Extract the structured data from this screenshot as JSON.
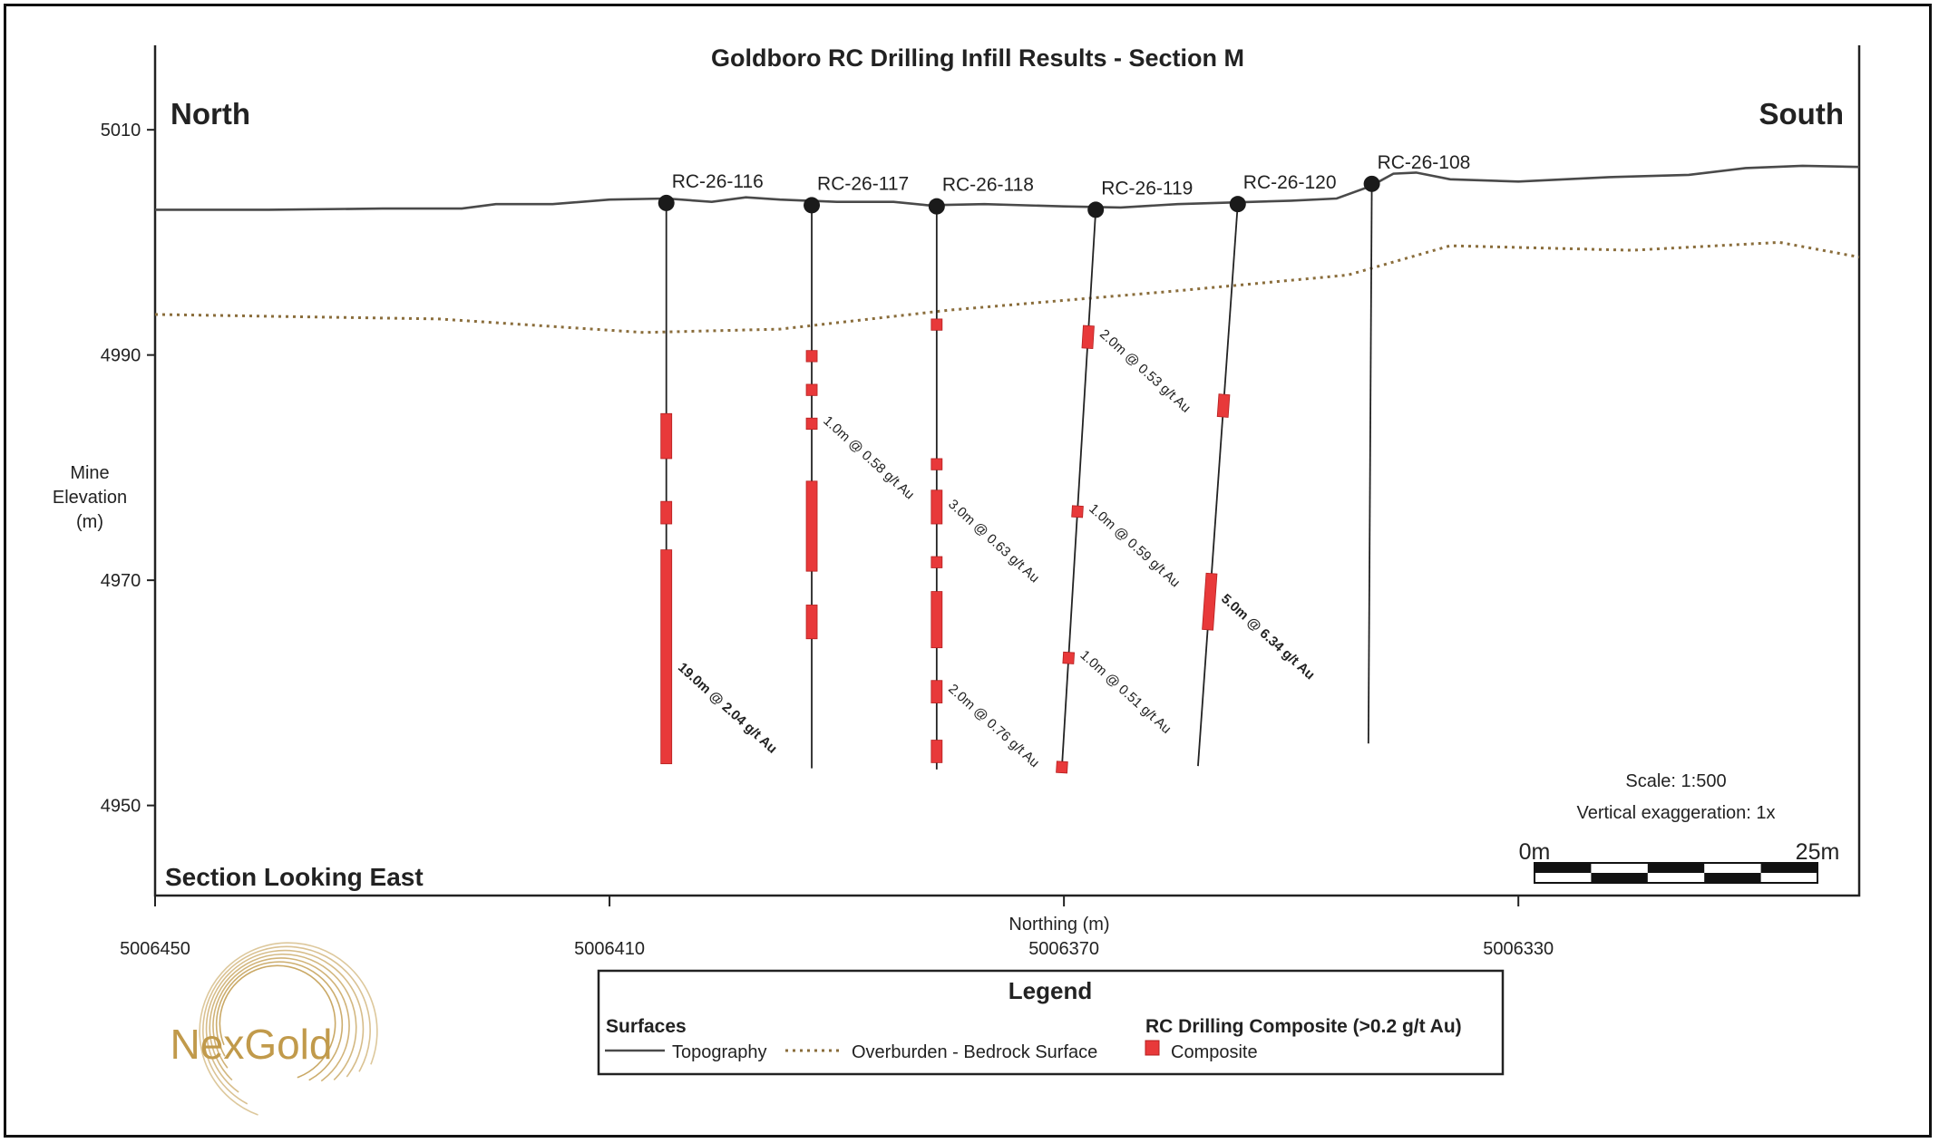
{
  "title": "Goldboro RC Drilling Infill Results - Section M",
  "direction_left": "North",
  "direction_right": "South",
  "section_view": "Section Looking East",
  "y_axis": {
    "label_lines": [
      "Mine",
      "Elevation",
      "(m)"
    ],
    "range": [
      4942,
      5017.5
    ],
    "ticks": [
      5010,
      4990,
      4970,
      4950
    ]
  },
  "x_axis": {
    "label": "Northing (m)",
    "range": [
      5006450,
      5006300
    ],
    "reversed": true,
    "ticks": [
      5006450,
      5006410,
      5006370,
      5006330
    ]
  },
  "scale_text": "Scale: 1:500",
  "vertical_exaggeration": "Vertical exaggeration: 1x",
  "scalebar": {
    "start_label": "0m",
    "end_label": "25m",
    "length_m": 25
  },
  "surfaces": {
    "topography": [
      [
        5006450,
        5002.9
      ],
      [
        5006440,
        5002.9
      ],
      [
        5006430,
        5003
      ],
      [
        5006423,
        5003
      ],
      [
        5006420,
        5003.4
      ],
      [
        5006415,
        5003.4
      ],
      [
        5006410,
        5003.8
      ],
      [
        5006405,
        5003.9
      ],
      [
        5006401,
        5003.6
      ],
      [
        5006398,
        5004
      ],
      [
        5006395,
        5003.8
      ],
      [
        5006390,
        5003.6
      ],
      [
        5006385,
        5003.6
      ],
      [
        5006382,
        5003.3
      ],
      [
        5006377,
        5003.4
      ],
      [
        5006370,
        5003.2
      ],
      [
        5006365,
        5003.1
      ],
      [
        5006360,
        5003.4
      ],
      [
        5006350,
        5003.7
      ],
      [
        5006346,
        5003.9
      ],
      [
        5006343,
        5005
      ],
      [
        5006341,
        5006.1
      ],
      [
        5006339,
        5006.2
      ],
      [
        5006336,
        5005.6
      ],
      [
        5006330,
        5005.4
      ],
      [
        5006322,
        5005.8
      ],
      [
        5006315,
        5006
      ],
      [
        5006310,
        5006.6
      ],
      [
        5006305,
        5006.8
      ],
      [
        5006300,
        5006.7
      ]
    ],
    "overburden": [
      [
        5006450,
        4993.6
      ],
      [
        5006425,
        4993.2
      ],
      [
        5006407,
        4992
      ],
      [
        5006395,
        4992.3
      ],
      [
        5006380,
        4994
      ],
      [
        5006360,
        4995.7
      ],
      [
        5006345,
        4997.1
      ],
      [
        5006336,
        4999.7
      ],
      [
        5006320,
        4999.3
      ],
      [
        5006307,
        5000
      ],
      [
        5006300,
        4998.7
      ]
    ]
  },
  "holes": [
    {
      "name": "RC-26-116",
      "collar": [
        5006405,
        5003.5
      ],
      "toe": [
        5006405,
        4953.8
      ],
      "composites": [
        [
          4984.8,
          4980.8
        ],
        [
          4977,
          4975
        ],
        [
          4972.7,
          4953.7
        ]
      ],
      "intercepts": [
        {
          "text": "19.0m @ 2.04 g/t Au",
          "bold": true,
          "at": 4962
        }
      ]
    },
    {
      "name": "RC-26-117",
      "collar": [
        5006392.2,
        5003.3
      ],
      "toe": [
        5006392.2,
        4953.3
      ],
      "composites": [
        [
          4990.4,
          4989.4
        ],
        [
          4987.4,
          4986.4
        ],
        [
          4984.4,
          4983.4
        ],
        [
          4978.8,
          4970.8
        ],
        [
          4967.8,
          4964.8
        ]
      ],
      "intercepts": [
        {
          "text": "1.0m @ 0.58 g/t Au",
          "bold": false,
          "at": 4983.9
        }
      ]
    },
    {
      "name": "RC-26-118",
      "collar": [
        5006381.2,
        5003.2
      ],
      "toe": [
        5006381.2,
        4953.2
      ],
      "composites": [
        [
          4993.2,
          4992.2
        ],
        [
          4980.8,
          4979.8
        ],
        [
          4978,
          4975
        ],
        [
          4972.1,
          4971.1
        ],
        [
          4969,
          4964
        ],
        [
          4961.1,
          4959.1
        ],
        [
          4955.8,
          4953.8
        ]
      ],
      "intercepts": [
        {
          "text": "3.0m @ 0.63 g/t Au",
          "bold": false,
          "at": 4976.5
        },
        {
          "text": "2.0m @ 0.76 g/t Au",
          "bold": false,
          "at": 4960.1
        }
      ]
    },
    {
      "name": "RC-26-119",
      "collar": [
        5006367.2,
        5002.9
      ],
      "toe": [
        5006370.2,
        4953
      ],
      "composites": [
        [
          4992.6,
          4990.6
        ],
        [
          4976.6,
          4975.6
        ],
        [
          4963.6,
          4962.6
        ],
        [
          4953.9,
          4952.9
        ]
      ],
      "intercepts": [
        {
          "text": "2.0m @ 0.53 g/t Au",
          "bold": false,
          "at": 4991.6
        },
        {
          "text": "1.0m @ 0.59 g/t Au",
          "bold": false,
          "at": 4976.1
        },
        {
          "text": "1.0m @ 0.51 g/t Au",
          "bold": false,
          "at": 4963.1
        }
      ]
    },
    {
      "name": "RC-26-120",
      "collar": [
        5006354.7,
        5003.4
      ],
      "toe": [
        5006358.2,
        4953.5
      ],
      "composites": [
        [
          4986.5,
          4984.5
        ],
        [
          4970.6,
          4965.6
        ]
      ],
      "intercepts": [
        {
          "text": "5.0m @ 6.34 g/t Au",
          "bold": true,
          "at": 4968.1
        }
      ]
    },
    {
      "name": "RC-26-108",
      "collar": [
        5006342.9,
        5005.2
      ],
      "toe": [
        5006343.2,
        4955.5
      ],
      "composites": [],
      "intercepts": []
    }
  ],
  "legend": {
    "title": "Legend",
    "surfaces_heading": "Surfaces",
    "topography_label": "Topography",
    "overburden_label": "Overburden - Bedrock Surface",
    "composite_heading": "RC Drilling Composite (>0.2 g/t Au)",
    "composite_label": "Composite"
  },
  "logo_text": "NexGold",
  "colors": {
    "topography": "#4a4a4a",
    "overburden": "#8a6d3b",
    "composite": "#e8393a",
    "composite_edge": "#b42020",
    "hole": "#222222",
    "logo": "#c19a4b"
  }
}
